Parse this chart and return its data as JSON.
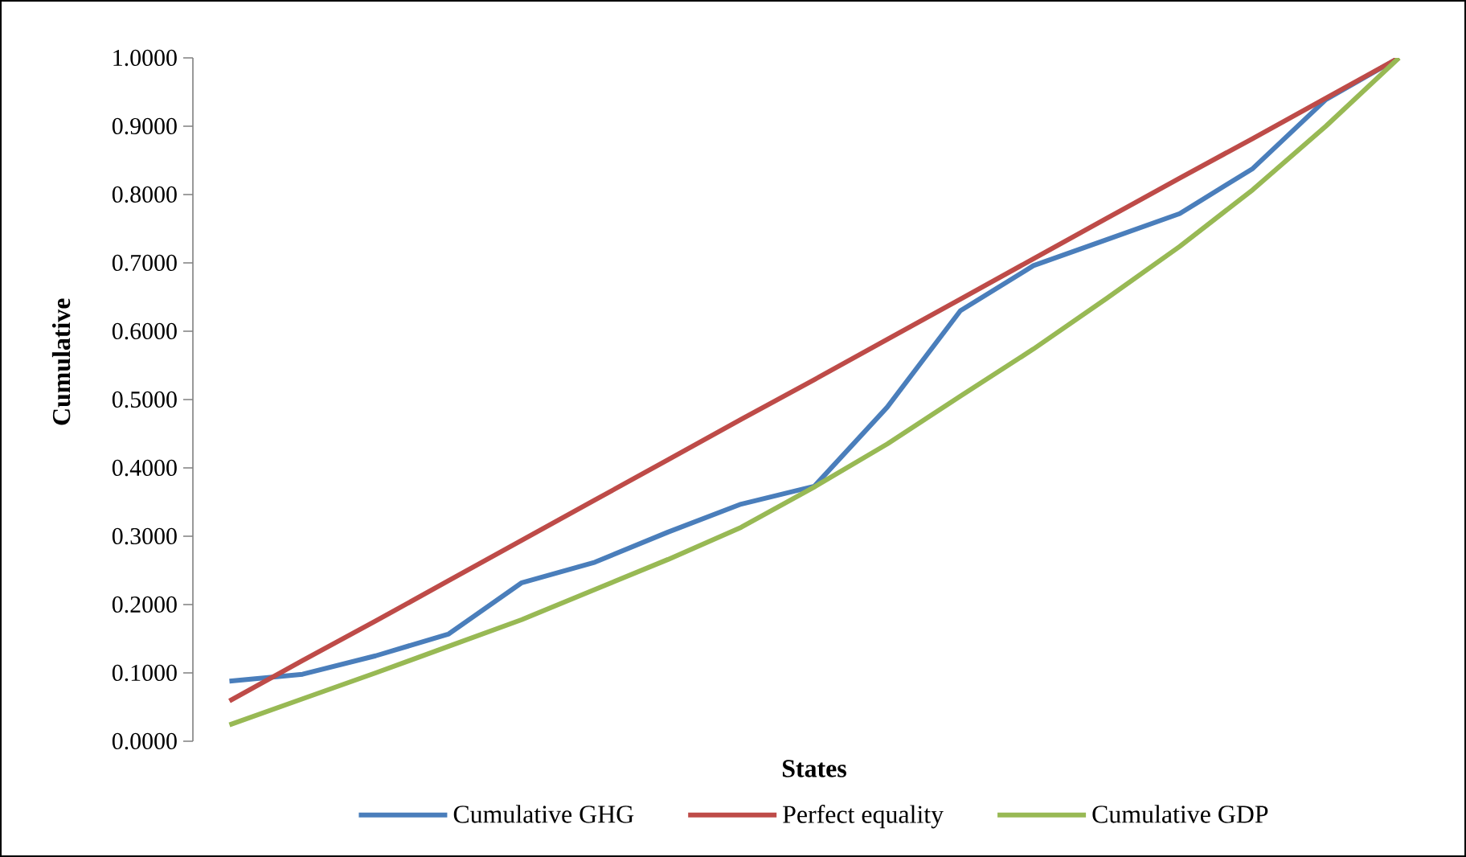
{
  "chart_data": {
    "type": "line",
    "xlabel": "States",
    "ylabel": "Cumulative",
    "categories": [
      null,
      null,
      null,
      null,
      null,
      null,
      null,
      null,
      null,
      null,
      null,
      null,
      null,
      null,
      null,
      null,
      null
    ],
    "series": [
      {
        "name": "Cumulative GHG",
        "color": "#4a7ebb",
        "values": [
          0.088,
          0.098,
          0.125,
          0.157,
          0.232,
          0.262,
          0.306,
          0.347,
          0.373,
          0.489,
          0.63,
          0.696,
          0.734,
          0.772,
          0.838,
          0.939,
          1.0
        ]
      },
      {
        "name": "Perfect equality",
        "color": "#be4b48",
        "values": [
          0.059,
          0.118,
          0.176,
          0.235,
          0.294,
          0.353,
          0.412,
          0.471,
          0.529,
          0.588,
          0.647,
          0.706,
          0.765,
          0.824,
          0.882,
          0.941,
          1.0
        ]
      },
      {
        "name": "Cumulative GDP",
        "color": "#98b954",
        "values": [
          0.024,
          0.062,
          0.1,
          0.139,
          0.178,
          0.222,
          0.266,
          0.313,
          0.372,
          0.435,
          0.505,
          0.574,
          0.648,
          0.724,
          0.807,
          0.9,
          1.0
        ]
      }
    ],
    "ylim": [
      0,
      1
    ],
    "yticks": [
      {
        "value": 0,
        "label": "0.0000"
      },
      {
        "value": 0.1,
        "label": "0.1000"
      },
      {
        "value": 0.2,
        "label": "0.2000"
      },
      {
        "value": 0.3,
        "label": "0.3000"
      },
      {
        "value": 0.4,
        "label": "0.4000"
      },
      {
        "value": 0.5,
        "label": "0.5000"
      },
      {
        "value": 0.6,
        "label": "0.6000"
      },
      {
        "value": 0.7,
        "label": "0.7000"
      },
      {
        "value": 0.8,
        "label": "0.8000"
      },
      {
        "value": 0.9,
        "label": "0.9000"
      },
      {
        "value": 1.0,
        "label": "1.0000"
      }
    ],
    "tick_labels": "y",
    "legend": "bottom",
    "grid": false,
    "marker": "none",
    "line_style": "solid"
  }
}
